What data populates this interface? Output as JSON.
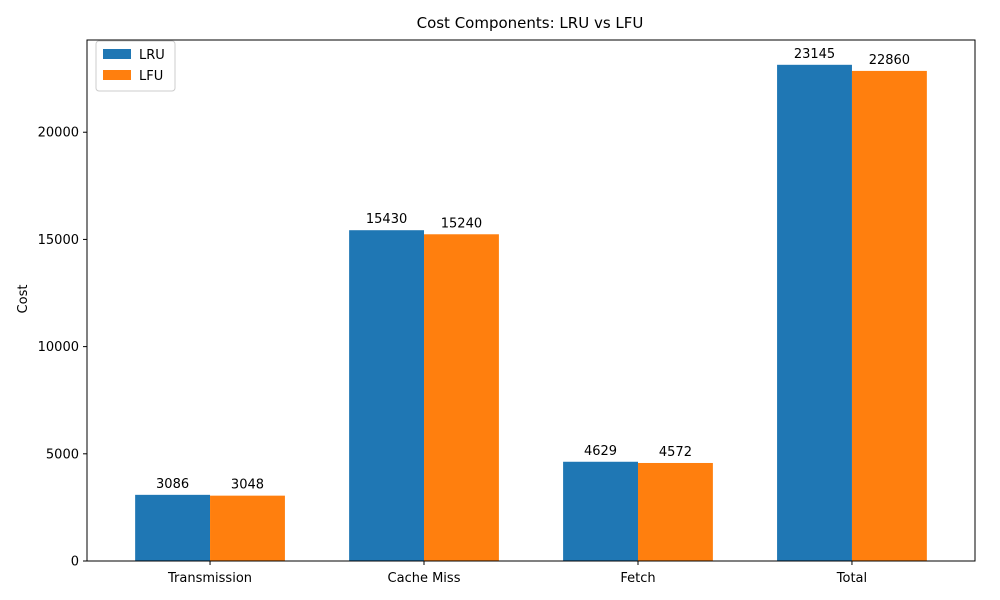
{
  "chart_data": {
    "type": "bar",
    "title": "Cost Components: LRU vs LFU",
    "xlabel": "",
    "ylabel": "Cost",
    "categories": [
      "Transmission",
      "Cache Miss",
      "Fetch",
      "Total"
    ],
    "series": [
      {
        "name": "LRU",
        "color": "#1f77b4",
        "values": [
          3086,
          15430,
          4629,
          23145
        ]
      },
      {
        "name": "LFU",
        "color": "#ff7f0e",
        "values": [
          3048,
          15240,
          4572,
          22860
        ]
      }
    ],
    "ylim": [
      0,
      24302
    ],
    "yticks": [
      0,
      5000,
      10000,
      15000,
      20000
    ],
    "legend": "top-left",
    "grid": false
  }
}
